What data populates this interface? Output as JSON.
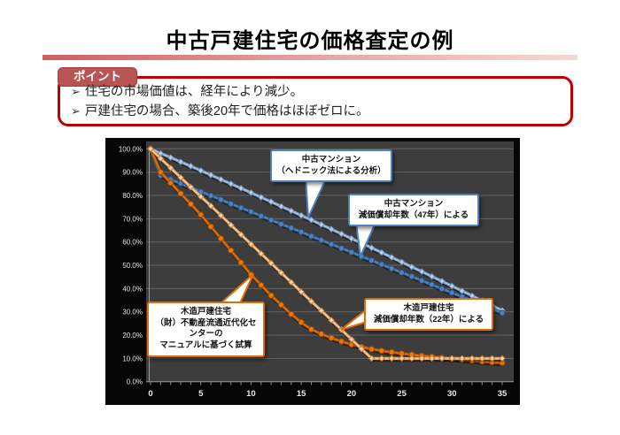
{
  "slide": {
    "title": "中古戸建住宅の価格査定の例",
    "points_box": {
      "tab_label": "ポイント",
      "bullet_glyph": "➢",
      "bullets": [
        "住宅の市場価値は、経年により減少。",
        "戸建住宅の場合、築後20年で価格はほぼゼロに。"
      ],
      "border_color": "#c00000",
      "tab_color": "#b75454"
    }
  },
  "chart_data": {
    "type": "line",
    "title": "",
    "xlabel": "",
    "ylabel": "",
    "xlim": [
      0,
      35
    ],
    "ylim": [
      0,
      100
    ],
    "grid": true,
    "background": "#060606",
    "plot_background": "#3d3d3d",
    "x_tick_labels": [
      "0",
      "5",
      "10",
      "15",
      "20",
      "25",
      "30",
      "35"
    ],
    "x_ticks": [
      0,
      5,
      10,
      15,
      20,
      25,
      30,
      35
    ],
    "y_tick_labels": [
      "100.0%",
      "90.0%",
      "80.0%",
      "70.0%",
      "60.0%",
      "50.0%",
      "40.0%",
      "30.0%",
      "20.0%",
      "10.0%",
      "0.0%"
    ],
    "y_ticks": [
      100,
      90,
      80,
      70,
      60,
      50,
      40,
      30,
      20,
      10,
      0
    ],
    "x_years": [
      0,
      1,
      2,
      3,
      4,
      5,
      6,
      7,
      8,
      9,
      10,
      11,
      12,
      13,
      14,
      15,
      16,
      17,
      18,
      19,
      20,
      21,
      22,
      23,
      24,
      25,
      26,
      27,
      28,
      29,
      30,
      31,
      32,
      33,
      34,
      35
    ],
    "series": [
      {
        "name": "中古マンション（ヘドニック法による分析）",
        "color": "#a3bedd",
        "edge": "#7094bd",
        "marker": "diamond",
        "marker_fill": "#bdd0e7",
        "marker_edge": "#6b90bc",
        "values": [
          100,
          98.1,
          96.3,
          94.4,
          92.6,
          90.7,
          88.8,
          86.9,
          85.0,
          83.1,
          81.2,
          79.2,
          77.3,
          75.3,
          73.4,
          71.4,
          69.5,
          67.5,
          65.5,
          63.5,
          61.5,
          59.5,
          57.5,
          55.5,
          53.4,
          51.4,
          49.3,
          47.3,
          45.2,
          43.2,
          41.1,
          39.0,
          36.9,
          34.8,
          32.7,
          30.6
        ]
      },
      {
        "name": "中古マンション 減価償却年数（47年）による",
        "color": "#4f81bd",
        "edge": "#34618f",
        "marker": "circle",
        "marker_fill": "#4f81bd",
        "marker_edge": "#2c4f7c",
        "values": [
          100,
          88.6,
          86.9,
          85.1,
          83.4,
          81.6,
          79.9,
          78.2,
          76.4,
          74.7,
          73.0,
          71.2,
          69.5,
          67.7,
          66.0,
          64.3,
          62.5,
          60.8,
          59.1,
          57.3,
          55.6,
          53.8,
          52.1,
          50.4,
          48.6,
          46.9,
          45.2,
          43.4,
          41.7,
          39.9,
          38.2,
          36.5,
          34.7,
          33.0,
          31.3,
          29.5
        ]
      },
      {
        "name": "木造戸建住宅 （財）不動産流通近代化センターのマニュアルに基づく試算",
        "color": "#e36c0a",
        "edge": "#a34d05",
        "marker": "circle",
        "marker_fill": "#e9780e",
        "marker_edge": "#9c4a06",
        "values": [
          100,
          90.0,
          85.4,
          80.8,
          76.3,
          71.7,
          66.6,
          61.5,
          56.4,
          51.2,
          46.0,
          41.5,
          37.0,
          33.0,
          29.0,
          25.5,
          22.5,
          20.5,
          18.8,
          17.3,
          16.0,
          15.0,
          14.0,
          13.3,
          12.7,
          12.1,
          11.6,
          11.1,
          10.7,
          10.3,
          9.9,
          9.5,
          9.1,
          8.7,
          8.4,
          8.1
        ]
      },
      {
        "name": "木造戸建住宅 減価償却年数（22年）による",
        "color": "#fac090",
        "edge": "#cf9355",
        "marker": "diamond",
        "marker_fill": "#fcd5b4",
        "marker_edge": "#c0803f",
        "values": [
          100,
          95.9,
          91.8,
          87.7,
          83.6,
          79.5,
          75.5,
          71.4,
          67.3,
          63.2,
          59.1,
          55.0,
          50.9,
          46.8,
          42.7,
          38.6,
          34.5,
          30.5,
          26.4,
          22.3,
          18.2,
          14.1,
          10,
          10,
          10,
          10,
          10,
          10,
          10,
          10,
          10,
          10,
          10,
          10,
          10,
          10
        ]
      }
    ],
    "callouts": [
      {
        "color": "#4f81bd",
        "lines": [
          "中古マンション",
          "（ヘドニック法による分析）"
        ]
      },
      {
        "color": "#4f81bd",
        "lines": [
          "中古マンション",
          "減価償却年数（47年）による"
        ]
      },
      {
        "color": "#e36c0a",
        "lines": [
          "木造戸建住宅",
          "（財）不動産流通近代化センターの",
          "マニュアルに基づく試算"
        ]
      },
      {
        "color": "#e36c0a",
        "lines": [
          "木造戸建住宅",
          "減価償却年数（22年）による"
        ]
      }
    ]
  }
}
